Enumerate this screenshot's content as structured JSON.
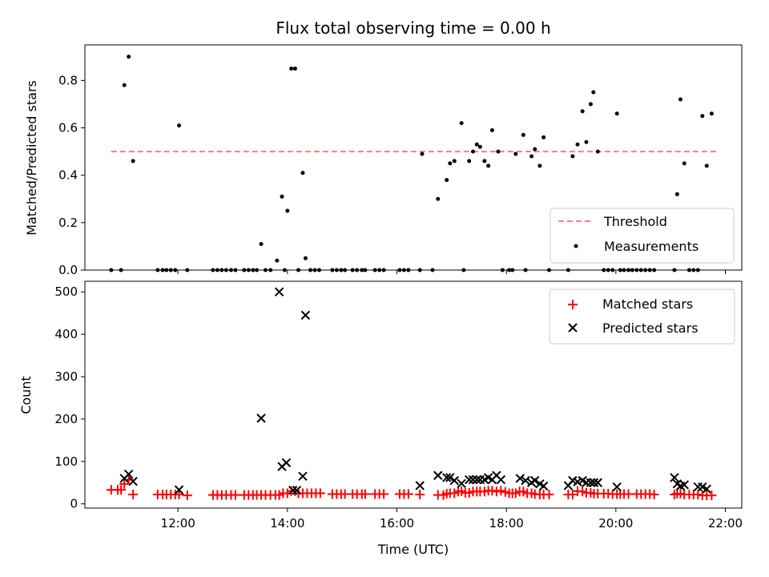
{
  "title": "Flux total observing time = 0.00 h",
  "chart_data": [
    {
      "type": "scatter",
      "ylabel": "Matched/Predicted stars",
      "xlabel": "",
      "ylim": [
        0,
        0.95
      ],
      "xlim": [
        10.3,
        22.3
      ],
      "yticks": [
        0,
        0.2,
        0.4,
        0.6,
        0.8
      ],
      "ytick_labels": [
        "0.0",
        "0.2",
        "0.4",
        "0.6",
        "0.8"
      ],
      "legend_position": "lower-right",
      "series": [
        {
          "name": "Threshold",
          "style": "dashed-line",
          "color": "#ff7f7f",
          "x": [
            10.78,
            21.83
          ],
          "y": [
            0.5,
            0.5
          ]
        },
        {
          "name": "Measurements",
          "style": "dot",
          "color": "#000000",
          "x": [
            10.78,
            10.96,
            11.02,
            11.1,
            11.18,
            11.63,
            11.72,
            11.79,
            11.87,
            11.95,
            12.02,
            12.17,
            12.64,
            12.72,
            12.8,
            12.88,
            12.97,
            13.05,
            13.21,
            13.29,
            13.37,
            13.44,
            13.52,
            13.6,
            13.69,
            13.81,
            13.9,
            13.95,
            14.0,
            14.07,
            14.14,
            14.2,
            14.28,
            14.33,
            14.42,
            14.5,
            14.58,
            14.82,
            14.9,
            14.98,
            15.05,
            15.19,
            15.27,
            15.36,
            15.42,
            15.6,
            15.68,
            15.76,
            16.05,
            16.13,
            16.21,
            16.42,
            16.46,
            16.65,
            16.75,
            16.91,
            16.97,
            17.05,
            17.18,
            17.22,
            17.32,
            17.39,
            17.46,
            17.52,
            17.6,
            17.67,
            17.74,
            17.85,
            17.93,
            18.05,
            18.11,
            18.17,
            18.31,
            18.35,
            18.46,
            18.52,
            18.61,
            18.68,
            18.78,
            19.13,
            19.21,
            19.3,
            19.39,
            19.46,
            19.54,
            19.59,
            19.67,
            19.78,
            19.86,
            19.94,
            20.02,
            20.08,
            20.15,
            20.23,
            20.3,
            20.38,
            20.46,
            20.54,
            20.62,
            20.7,
            21.07,
            21.12,
            21.18,
            21.25,
            21.34,
            21.42,
            21.5,
            21.58,
            21.66,
            21.75
          ],
          "y": [
            0.0,
            0.0,
            0.78,
            0.9,
            0.46,
            0.0,
            0.0,
            0.0,
            0.0,
            0.0,
            0.61,
            0.0,
            0.0,
            0.0,
            0.0,
            0.0,
            0.0,
            0.0,
            0.0,
            0.0,
            0.0,
            0.0,
            0.11,
            0.0,
            0.0,
            0.04,
            0.31,
            0.0,
            0.25,
            0.85,
            0.85,
            0.0,
            0.41,
            0.05,
            0.0,
            0.0,
            0.0,
            0.0,
            0.0,
            0.0,
            0.0,
            0.0,
            0.0,
            0.0,
            0.0,
            0.0,
            0.0,
            0.0,
            0.0,
            0.0,
            0.0,
            0.0,
            0.49,
            0.0,
            0.3,
            0.38,
            0.45,
            0.46,
            0.62,
            0.0,
            0.46,
            0.5,
            0.53,
            0.52,
            0.46,
            0.44,
            0.59,
            0.5,
            0.0,
            0.0,
            0.0,
            0.49,
            0.57,
            0.0,
            0.48,
            0.51,
            0.44,
            0.56,
            0.0,
            0.0,
            0.48,
            0.53,
            0.67,
            0.54,
            0.7,
            0.75,
            0.5,
            0.0,
            0.0,
            0.0,
            0.66,
            0.0,
            0.0,
            0.0,
            0.0,
            0.0,
            0.0,
            0.0,
            0.0,
            0.0,
            0.0,
            0.32,
            0.72,
            0.45,
            0.0,
            0.0,
            0.0,
            0.65,
            0.44,
            0.66
          ]
        }
      ]
    },
    {
      "type": "scatter",
      "ylabel": "Count",
      "xlabel": "Time (UTC)",
      "ylim": [
        -10,
        525
      ],
      "xlim": [
        10.3,
        22.3
      ],
      "yticks": [
        0,
        100,
        200,
        300,
        400,
        500
      ],
      "ytick_labels": [
        "0",
        "100",
        "200",
        "300",
        "400",
        "500"
      ],
      "xticks": [
        12,
        14,
        16,
        18,
        20,
        22
      ],
      "xtick_labels": [
        "12:00",
        "14:00",
        "16:00",
        "18:00",
        "20:00",
        "22:00"
      ],
      "legend_position": "upper-right",
      "series": [
        {
          "name": "Matched stars",
          "marker": "plus",
          "color": "#ff0000",
          "x": [
            10.78,
            10.9,
            10.96,
            11.02,
            11.1,
            11.18,
            11.63,
            11.72,
            11.79,
            11.87,
            11.95,
            12.02,
            12.17,
            12.64,
            12.72,
            12.8,
            12.88,
            12.97,
            13.05,
            13.21,
            13.29,
            13.37,
            13.44,
            13.52,
            13.6,
            13.69,
            13.78,
            13.85,
            13.92,
            14.0,
            14.07,
            14.14,
            14.2,
            14.28,
            14.36,
            14.44,
            14.52,
            14.6,
            14.82,
            14.9,
            14.98,
            15.05,
            15.19,
            15.27,
            15.36,
            15.42,
            15.6,
            15.68,
            15.76,
            16.05,
            16.13,
            16.21,
            16.42,
            16.75,
            16.85,
            16.91,
            16.97,
            17.05,
            17.12,
            17.18,
            17.25,
            17.32,
            17.39,
            17.46,
            17.52,
            17.6,
            17.67,
            17.74,
            17.82,
            17.9,
            17.98,
            18.05,
            18.11,
            18.17,
            18.24,
            18.31,
            18.38,
            18.46,
            18.52,
            18.61,
            18.68,
            18.78,
            19.13,
            19.21,
            19.3,
            19.39,
            19.46,
            19.54,
            19.6,
            19.67,
            19.78,
            19.86,
            19.94,
            20.02,
            20.08,
            20.15,
            20.23,
            20.38,
            20.46,
            20.54,
            20.62,
            20.7,
            21.07,
            21.12,
            21.18,
            21.25,
            21.34,
            21.42,
            21.5,
            21.58,
            21.66,
            21.75
          ],
          "y": [
            33,
            33,
            33,
            47,
            57,
            22,
            22,
            22,
            22,
            22,
            22,
            22,
            20,
            21,
            21,
            21,
            21,
            21,
            21,
            21,
            21,
            21,
            21,
            21,
            21,
            21,
            21,
            21,
            25,
            25,
            30,
            30,
            25,
            25,
            25,
            25,
            25,
            25,
            23,
            23,
            23,
            23,
            23,
            23,
            23,
            23,
            23,
            23,
            23,
            23,
            23,
            23,
            22,
            21,
            21,
            24,
            25,
            25,
            29,
            30,
            26,
            26,
            29,
            29,
            29,
            29,
            31,
            31,
            29,
            31,
            28,
            25,
            25,
            25,
            29,
            29,
            25,
            25,
            23,
            22,
            22,
            22,
            22,
            22,
            30,
            29,
            26,
            26,
            24,
            24,
            24,
            24,
            23,
            23,
            23,
            23,
            23,
            23,
            23,
            23,
            23,
            22,
            22,
            24,
            24,
            22,
            22,
            22,
            22,
            20,
            20,
            20
          ]
        },
        {
          "name": "Predicted stars",
          "marker": "x",
          "color": "#000000",
          "x": [
            11.02,
            11.1,
            11.18,
            12.02,
            13.52,
            13.85,
            13.9,
            13.98,
            14.1,
            14.17,
            14.28,
            14.33,
            16.42,
            16.75,
            16.91,
            16.97,
            17.05,
            17.18,
            17.32,
            17.39,
            17.46,
            17.52,
            17.6,
            17.67,
            17.74,
            17.82,
            17.9,
            18.25,
            18.35,
            18.46,
            18.52,
            18.61,
            18.68,
            19.13,
            19.21,
            19.3,
            19.39,
            19.46,
            19.54,
            19.6,
            19.67,
            20.02,
            21.07,
            21.12,
            21.18,
            21.25,
            21.5,
            21.58,
            21.66
          ],
          "y": [
            60,
            70,
            53,
            33,
            202,
            500,
            88,
            97,
            32,
            32,
            65,
            445,
            43,
            67,
            62,
            62,
            55,
            48,
            57,
            57,
            57,
            57,
            57,
            62,
            57,
            67,
            57,
            60,
            55,
            50,
            55,
            47,
            42,
            43,
            55,
            52,
            55,
            50,
            50,
            50,
            50,
            40,
            62,
            47,
            42,
            45,
            40,
            40,
            35
          ]
        }
      ]
    }
  ]
}
